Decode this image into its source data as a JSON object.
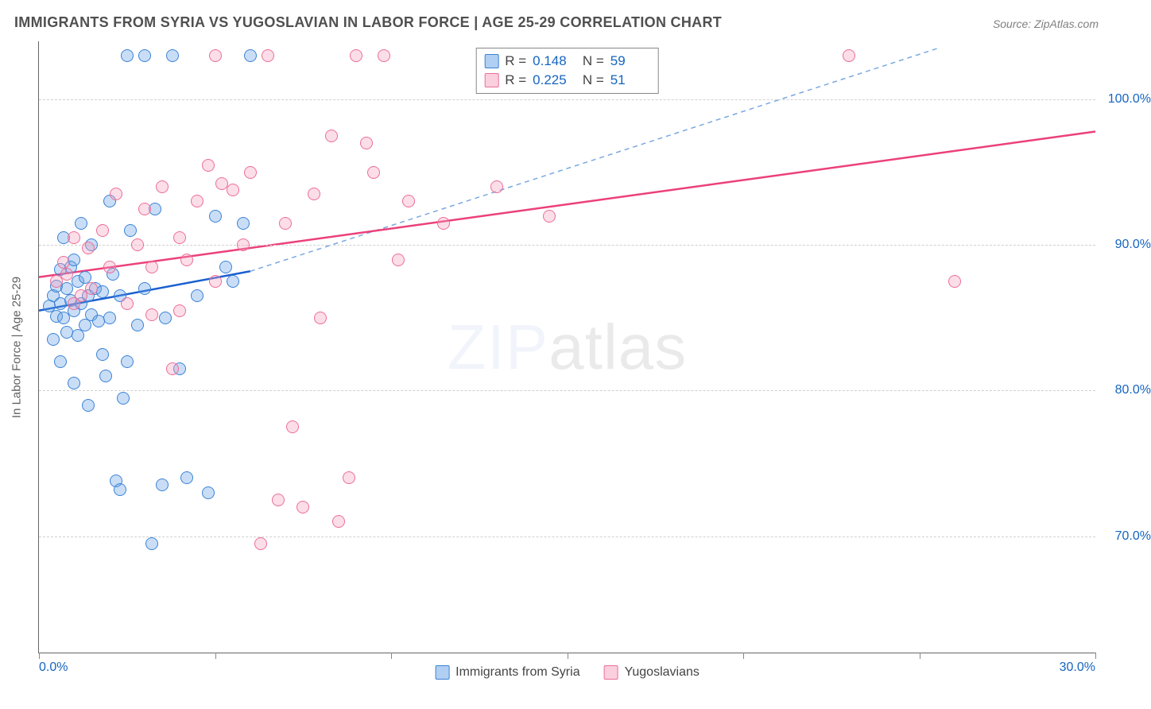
{
  "title": "IMMIGRANTS FROM SYRIA VS YUGOSLAVIAN IN LABOR FORCE | AGE 25-29 CORRELATION CHART",
  "source": "Source: ZipAtlas.com",
  "ylabel": "In Labor Force | Age 25-29",
  "watermark_a": "ZIP",
  "watermark_b": "atlas",
  "chart": {
    "type": "scatter",
    "xlim": [
      0,
      30
    ],
    "ylim": [
      62,
      104
    ],
    "xticks": [
      0,
      5,
      10,
      15,
      20,
      25,
      30
    ],
    "xticklabels": [
      "0.0%",
      "",
      "",
      "",
      "",
      "",
      "30.0%"
    ],
    "yticks": [
      70,
      80,
      90,
      100
    ],
    "yticklabels": [
      "70.0%",
      "80.0%",
      "90.0%",
      "100.0%"
    ],
    "background_color": "#ffffff",
    "grid_color": "#d0d0d0",
    "axis_color": "#666666",
    "label_color": "#1565c0",
    "marker_size": 16,
    "series": [
      {
        "name": "Immigrants from Syria",
        "color_fill": "rgba(100,160,230,0.35)",
        "color_border": "#3b82d6",
        "R": "0.148",
        "N": "59",
        "trend": {
          "x1": 0,
          "y1": 85.5,
          "x2": 6,
          "y2": 88.2,
          "dash_x2": 25.5,
          "dash_y2": 103.5,
          "solid_color": "#1a5fd0",
          "dash_color": "#7aa8e0"
        },
        "points": [
          [
            0.3,
            85.8
          ],
          [
            0.4,
            86.5
          ],
          [
            0.5,
            87.2
          ],
          [
            0.5,
            85.1
          ],
          [
            0.6,
            86.0
          ],
          [
            0.6,
            88.3
          ],
          [
            0.7,
            85.0
          ],
          [
            0.7,
            90.5
          ],
          [
            0.8,
            87.0
          ],
          [
            0.8,
            84.0
          ],
          [
            0.9,
            86.2
          ],
          [
            0.9,
            88.5
          ],
          [
            1.0,
            85.5
          ],
          [
            1.0,
            89.0
          ],
          [
            1.1,
            87.5
          ],
          [
            1.1,
            83.8
          ],
          [
            1.2,
            86.0
          ],
          [
            1.2,
            91.5
          ],
          [
            1.3,
            87.8
          ],
          [
            1.3,
            84.5
          ],
          [
            1.4,
            86.5
          ],
          [
            1.5,
            85.2
          ],
          [
            1.5,
            90.0
          ],
          [
            1.6,
            87.0
          ],
          [
            1.7,
            84.8
          ],
          [
            1.8,
            86.8
          ],
          [
            1.8,
            82.5
          ],
          [
            1.9,
            81.0
          ],
          [
            2.0,
            85.0
          ],
          [
            2.0,
            93.0
          ],
          [
            2.1,
            88.0
          ],
          [
            2.3,
            86.5
          ],
          [
            2.4,
            79.5
          ],
          [
            2.5,
            82.0
          ],
          [
            2.5,
            103.0
          ],
          [
            2.6,
            91.0
          ],
          [
            2.8,
            84.5
          ],
          [
            3.0,
            87.0
          ],
          [
            3.0,
            103.0
          ],
          [
            3.2,
            69.5
          ],
          [
            3.3,
            92.5
          ],
          [
            3.5,
            73.5
          ],
          [
            3.6,
            85.0
          ],
          [
            3.8,
            103.0
          ],
          [
            4.0,
            81.5
          ],
          [
            4.2,
            74.0
          ],
          [
            4.5,
            86.5
          ],
          [
            4.8,
            73.0
          ],
          [
            5.0,
            92.0
          ],
          [
            5.3,
            88.5
          ],
          [
            5.5,
            87.5
          ],
          [
            5.8,
            91.5
          ],
          [
            6.0,
            103.0
          ],
          [
            1.0,
            80.5
          ],
          [
            1.4,
            79.0
          ],
          [
            0.4,
            83.5
          ],
          [
            0.6,
            82.0
          ],
          [
            2.2,
            73.8
          ],
          [
            2.3,
            73.2
          ]
        ]
      },
      {
        "name": "Yugoslavians",
        "color_fill": "rgba(245,160,190,0.35)",
        "color_border": "#ec6d99",
        "R": "0.225",
        "N": "51",
        "trend": {
          "x1": 0,
          "y1": 87.8,
          "x2": 30,
          "y2": 97.8,
          "solid_color": "#ec407a"
        },
        "points": [
          [
            0.5,
            87.5
          ],
          [
            0.8,
            88.0
          ],
          [
            1.0,
            90.5
          ],
          [
            1.2,
            86.5
          ],
          [
            1.4,
            89.8
          ],
          [
            1.5,
            87.0
          ],
          [
            1.8,
            91.0
          ],
          [
            2.0,
            88.5
          ],
          [
            2.2,
            93.5
          ],
          [
            2.5,
            86.0
          ],
          [
            2.8,
            90.0
          ],
          [
            3.0,
            92.5
          ],
          [
            3.2,
            88.5
          ],
          [
            3.5,
            94.0
          ],
          [
            3.8,
            81.5
          ],
          [
            4.0,
            90.5
          ],
          [
            4.2,
            89.0
          ],
          [
            4.5,
            93.0
          ],
          [
            4.8,
            95.5
          ],
          [
            5.0,
            87.5
          ],
          [
            5.2,
            94.2
          ],
          [
            5.5,
            93.8
          ],
          [
            5.8,
            90.0
          ],
          [
            5.0,
            103.0
          ],
          [
            6.0,
            95.0
          ],
          [
            6.3,
            69.5
          ],
          [
            6.5,
            103.0
          ],
          [
            6.8,
            72.5
          ],
          [
            7.0,
            91.5
          ],
          [
            7.2,
            77.5
          ],
          [
            7.5,
            72.0
          ],
          [
            7.8,
            93.5
          ],
          [
            8.0,
            85.0
          ],
          [
            8.3,
            97.5
          ],
          [
            8.5,
            71.0
          ],
          [
            8.8,
            74.0
          ],
          [
            9.0,
            103.0
          ],
          [
            9.3,
            97.0
          ],
          [
            9.5,
            95.0
          ],
          [
            9.8,
            103.0
          ],
          [
            10.2,
            89.0
          ],
          [
            10.5,
            93.0
          ],
          [
            11.5,
            91.5
          ],
          [
            13.0,
            94.0
          ],
          [
            14.5,
            92.0
          ],
          [
            23.0,
            103.0
          ],
          [
            26.0,
            87.5
          ],
          [
            4.0,
            85.5
          ],
          [
            3.2,
            85.2
          ],
          [
            1.0,
            86.0
          ],
          [
            0.7,
            88.8
          ]
        ]
      }
    ],
    "legend_bottom": [
      {
        "swatch": "blue",
        "label": "Immigrants from Syria"
      },
      {
        "swatch": "pink",
        "label": "Yugoslavians"
      }
    ]
  }
}
